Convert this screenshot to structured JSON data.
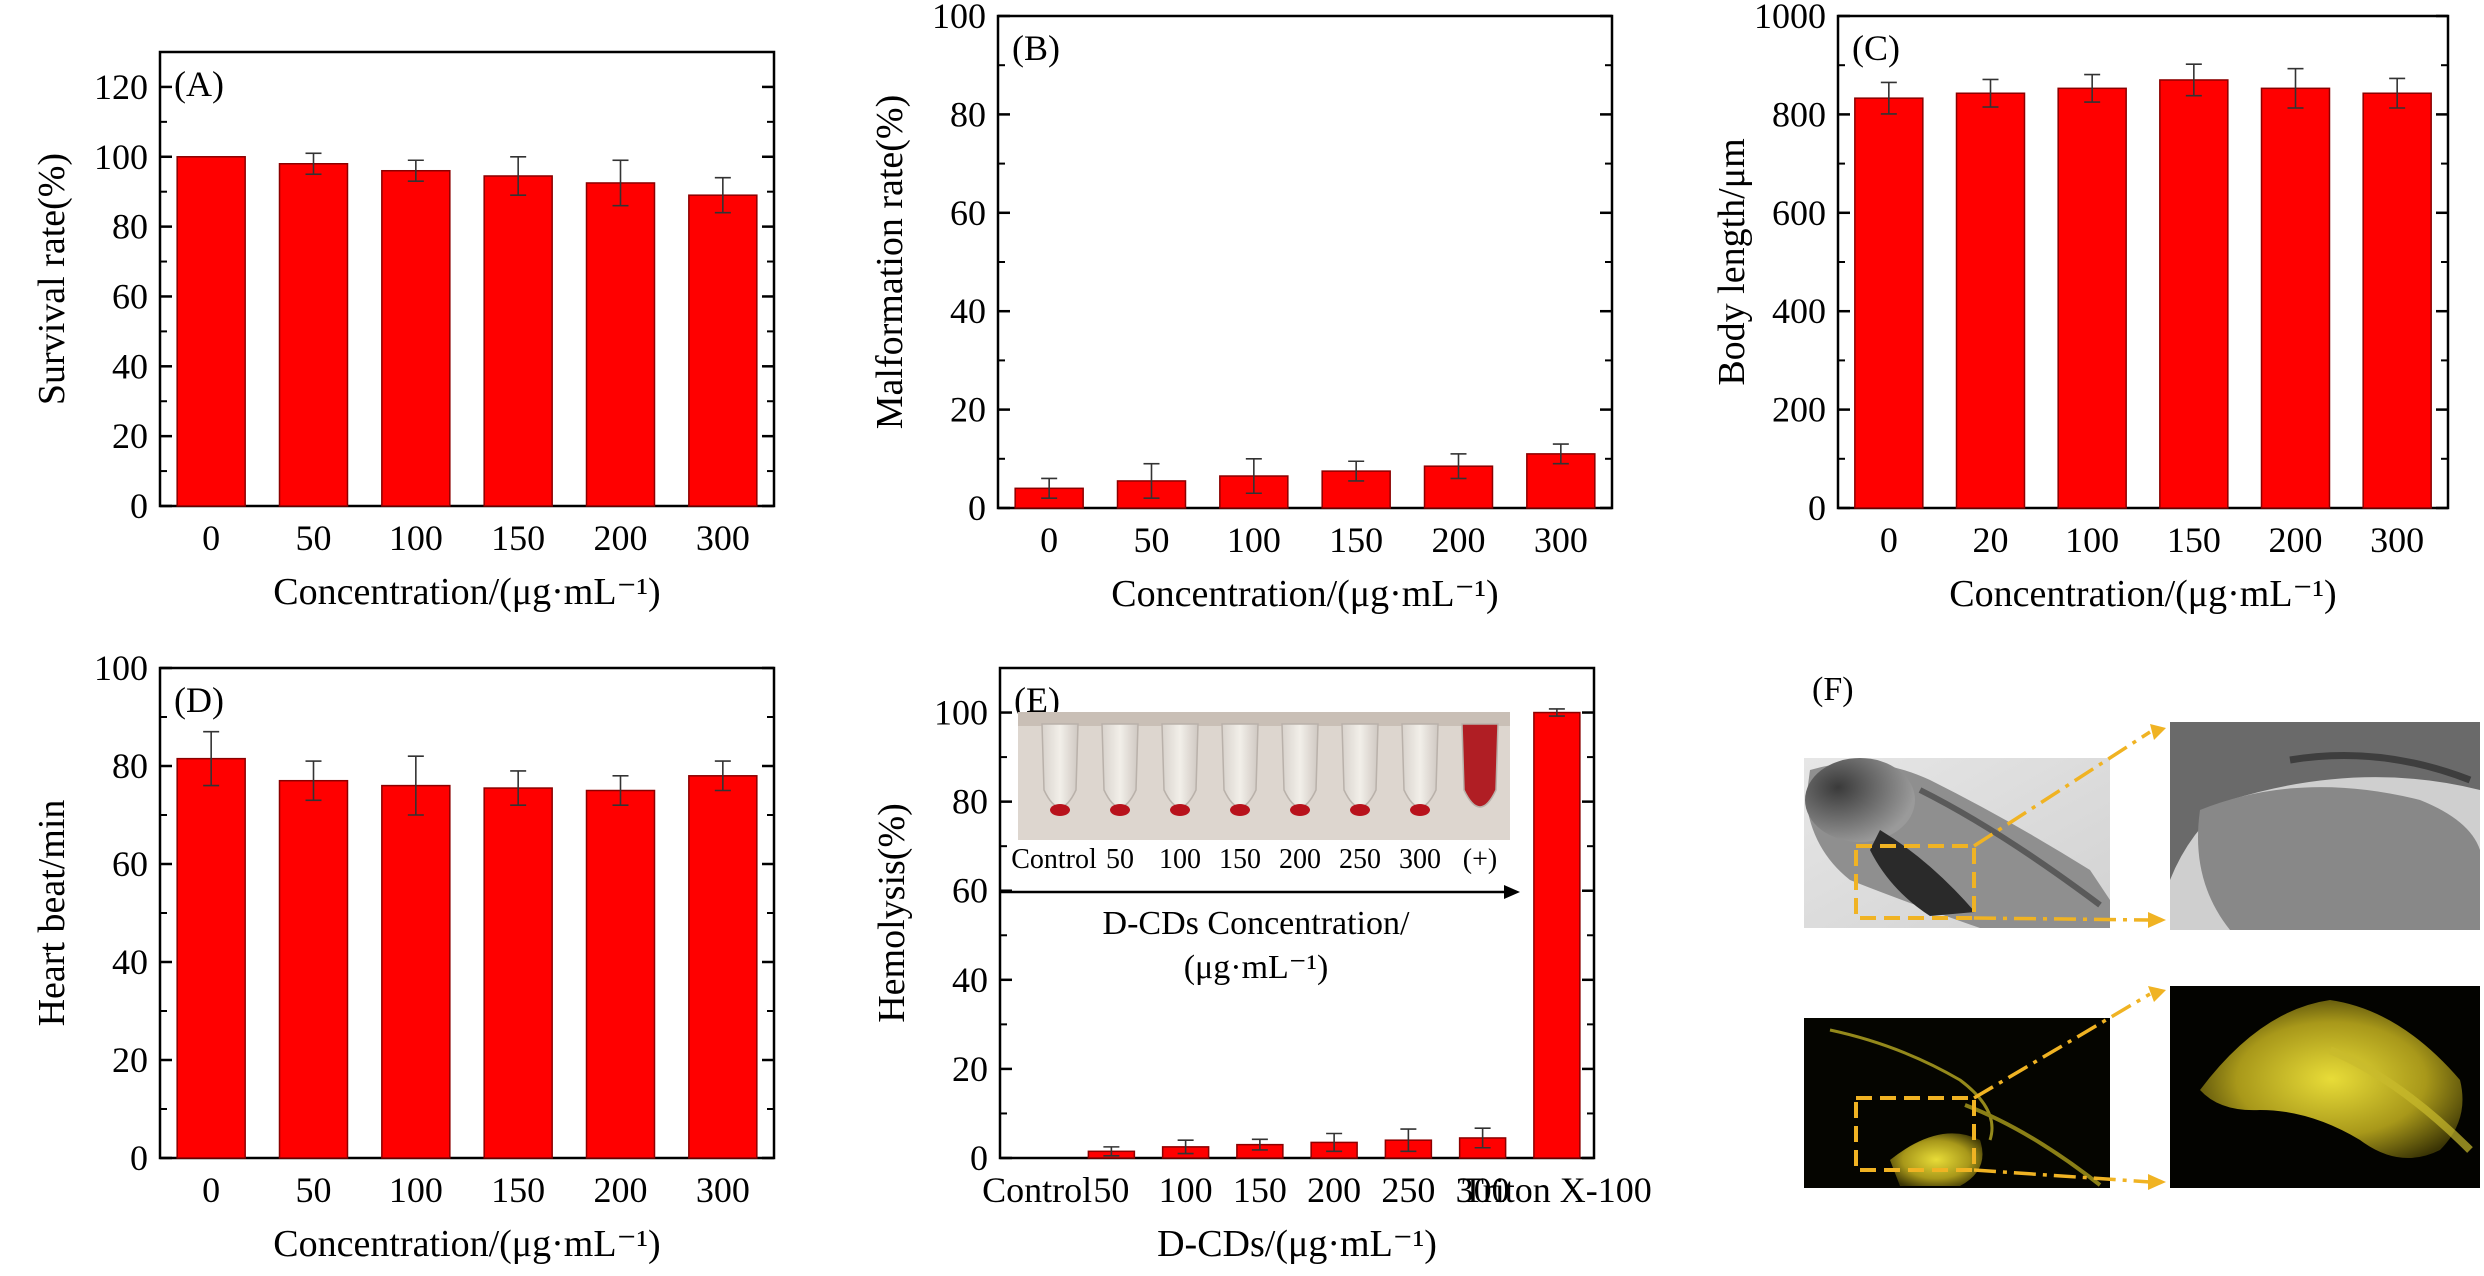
{
  "figure": {
    "accent_color": "#ff0000",
    "bar_outline_color": "#8b0000"
  },
  "chart_data": [
    {
      "id": "A",
      "panel_label": "(A)",
      "type": "bar",
      "categories": [
        "0",
        "50",
        "100",
        "150",
        "200",
        "300"
      ],
      "values": [
        100,
        98,
        96,
        94.5,
        92.5,
        89
      ],
      "errors": [
        0,
        3,
        3,
        5.5,
        6.5,
        5
      ],
      "ylabel": "Survival rate(%)",
      "xlabel": "Concentration/(μg·mL⁻¹)",
      "ylim": [
        0,
        130
      ],
      "yticks": [
        0,
        20,
        40,
        60,
        80,
        100,
        120
      ]
    },
    {
      "id": "B",
      "panel_label": "(B)",
      "type": "bar",
      "categories": [
        "0",
        "50",
        "100",
        "150",
        "200",
        "300"
      ],
      "values": [
        4,
        5.5,
        6.5,
        7.5,
        8.5,
        11
      ],
      "errors": [
        2,
        3.5,
        3.5,
        2,
        2.5,
        2
      ],
      "ylabel": "Malformation rate(%)",
      "xlabel": "Concentration/(μg·mL⁻¹)",
      "ylim": [
        0,
        100
      ],
      "yticks": [
        0,
        20,
        40,
        60,
        80,
        100
      ]
    },
    {
      "id": "C",
      "panel_label": "(C)",
      "type": "bar",
      "categories": [
        "0",
        "20",
        "100",
        "150",
        "200",
        "300"
      ],
      "values": [
        833,
        843,
        853,
        870,
        853,
        843
      ],
      "errors": [
        32,
        28,
        28,
        32,
        40,
        30
      ],
      "ylabel": "Body length/μm",
      "xlabel": "Concentration/(μg·mL⁻¹)",
      "ylim": [
        0,
        1000
      ],
      "yticks": [
        0,
        200,
        400,
        600,
        800,
        1000
      ]
    },
    {
      "id": "D",
      "panel_label": "(D)",
      "type": "bar",
      "categories": [
        "0",
        "50",
        "100",
        "150",
        "200",
        "300"
      ],
      "values": [
        81.5,
        77,
        76,
        75.5,
        75,
        78
      ],
      "errors": [
        5.5,
        4,
        6,
        3.5,
        3,
        3
      ],
      "ylabel": "Heart beat/min",
      "xlabel": "Concentration/(μg·mL⁻¹)",
      "ylim": [
        0,
        100
      ],
      "yticks": [
        0,
        20,
        40,
        60,
        80,
        100
      ]
    },
    {
      "id": "E",
      "panel_label": "(E)",
      "type": "bar",
      "categories": [
        "Control",
        "50",
        "100",
        "150",
        "200",
        "250",
        "300",
        "Triton X-100"
      ],
      "values": [
        0,
        1.5,
        2.5,
        3,
        3.5,
        4,
        4.5,
        100
      ],
      "errors": [
        0,
        1,
        1.5,
        1.2,
        2,
        2.5,
        2.2,
        0.8
      ],
      "ylabel": "Hemolysis(%)",
      "xlabel": "D-CDs/(μg·mL⁻¹)",
      "ylim": [
        0,
        110
      ],
      "yticks": [
        0,
        20,
        40,
        60,
        80,
        100
      ],
      "inset": {
        "tube_labels": [
          "Control",
          "50",
          "100",
          "150",
          "200",
          "250",
          "300",
          "(+)"
        ],
        "arrow_caption_line1": "D-CDs Concentration/",
        "arrow_caption_line2": "(μg·mL⁻¹)"
      }
    }
  ],
  "panel_f": {
    "label": "(F)"
  }
}
